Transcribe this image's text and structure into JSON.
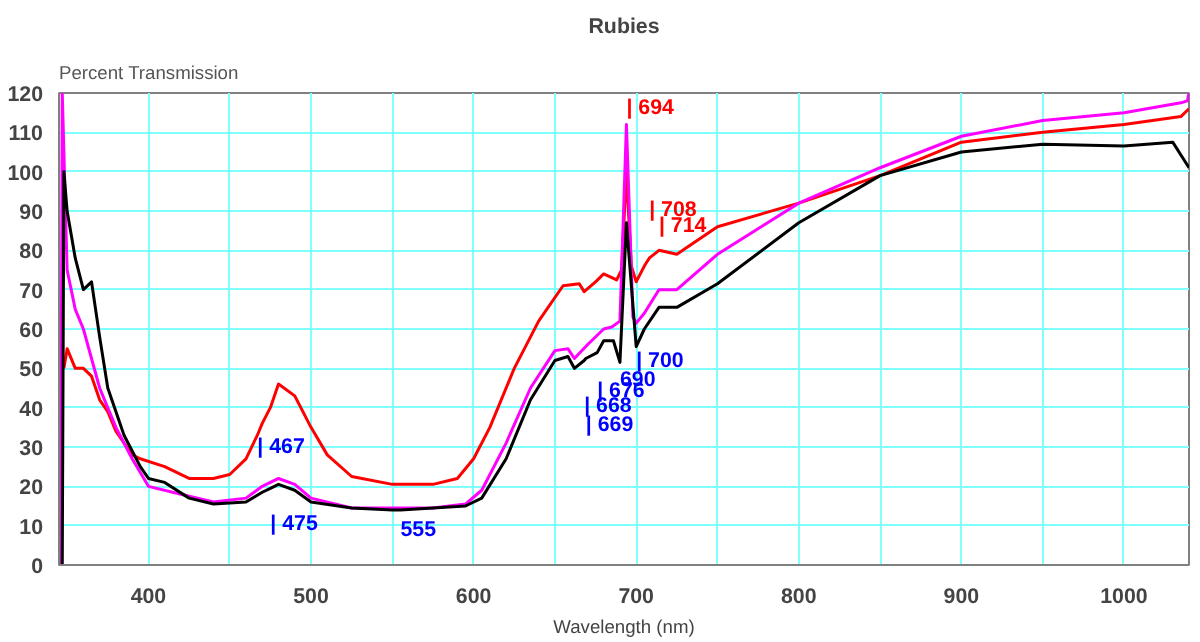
{
  "chart_data": {
    "type": "line",
    "title": "Rubies",
    "ylabel": "Percent Transmission",
    "xlabel": "Wavelength (nm)",
    "xlim": [
      345,
      1040
    ],
    "ylim": [
      0,
      120
    ],
    "xticks": [
      400,
      {
        "value": 450,
        "label": null
      },
      500,
      {
        "value": 550,
        "label": null
      },
      600,
      {
        "value": 650,
        "label": null
      },
      700,
      {
        "value": 750,
        "label": null
      },
      800,
      {
        "value": 850,
        "label": null
      },
      900,
      {
        "value": 950,
        "label": null
      },
      1000
    ],
    "yticks": [
      0,
      10,
      20,
      30,
      40,
      50,
      60,
      70,
      80,
      90,
      100,
      110,
      120
    ],
    "grid": true,
    "marker": "none",
    "line_style": "solid",
    "series": [
      {
        "color": "#ff0000",
        "x": [
          348,
          350,
          355,
          360,
          365,
          370,
          375,
          380,
          390,
          395,
          410,
          425,
          440,
          450,
          460,
          467,
          470,
          475,
          480,
          490,
          500,
          510,
          525,
          550,
          575,
          590,
          600,
          610,
          625,
          640,
          655,
          665,
          668,
          675,
          680,
          688,
          691,
          694,
          697,
          700,
          705,
          708,
          714,
          725,
          750,
          800,
          850,
          900,
          950,
          1000,
          1035,
          1040
        ],
        "values": [
          50,
          55,
          50,
          50,
          48,
          42,
          39,
          34,
          28,
          27,
          25,
          22,
          22,
          23,
          27,
          33,
          36,
          40,
          46,
          43,
          35,
          28,
          22.5,
          20.5,
          20.5,
          22,
          27,
          35,
          50,
          62,
          71,
          71.5,
          69.5,
          72,
          74,
          72.5,
          75,
          100,
          76,
          72,
          76,
          78,
          80,
          79,
          86,
          92,
          99,
          107.5,
          110,
          112,
          114,
          116
        ]
      },
      {
        "color": "#ff00ff",
        "x": [
          346,
          347,
          350,
          355,
          360,
          370,
          380,
          390,
          400,
          420,
          440,
          460,
          470,
          480,
          490,
          500,
          525,
          550,
          575,
          595,
          605,
          620,
          635,
          650,
          658,
          662,
          670,
          680,
          685,
          690,
          694,
          698,
          700,
          705,
          714,
          725,
          750,
          800,
          850,
          900,
          950,
          1000,
          1035,
          1039,
          1040
        ],
        "values": [
          0,
          120,
          75,
          65,
          60,
          45,
          35,
          27,
          20,
          18,
          16,
          17,
          20,
          22,
          20.5,
          17,
          14.5,
          14.5,
          14.5,
          15.5,
          19,
          31,
          45,
          54.5,
          55,
          52.5,
          56,
          60,
          60.5,
          62,
          112,
          63,
          61.5,
          64,
          70,
          70,
          79,
          92,
          101,
          109,
          113,
          115,
          117.5,
          118,
          120
        ]
      },
      {
        "color": "#000000",
        "x": [
          347,
          348,
          350,
          355,
          360,
          365,
          370,
          375,
          385,
          395,
          400,
          410,
          425,
          440,
          460,
          470,
          475,
          480,
          490,
          500,
          525,
          550,
          555,
          575,
          595,
          605,
          620,
          635,
          650,
          658,
          662,
          668,
          669,
          676,
          680,
          686,
          690,
          694,
          700,
          705,
          714,
          725,
          750,
          800,
          850,
          900,
          950,
          1000,
          1030,
          1040
        ],
        "values": [
          0,
          100,
          90,
          78,
          70,
          72,
          58,
          45,
          33,
          25,
          22,
          21,
          17,
          15.5,
          16,
          18.5,
          19.5,
          20.5,
          19,
          16,
          14.5,
          14,
          14,
          14.5,
          15,
          17,
          27,
          42,
          52,
          53,
          50,
          52,
          52.5,
          54,
          57,
          57,
          51.5,
          87,
          55.5,
          60,
          65.5,
          65.5,
          71.5,
          87,
          99,
          105,
          107,
          106.5,
          107.5,
          101
        ]
      }
    ],
    "annotations": [
      {
        "text": "| 694",
        "x": 694,
        "y": 112
      },
      {
        "text": "| 708",
        "x": 708,
        "y": 78
      },
      {
        "text": "| 714",
        "x": 714,
        "y": 80
      },
      {
        "text": "| 467",
        "x": 467,
        "y": 33
      },
      {
        "text": "| 475",
        "x": 475,
        "y": 19.5
      },
      {
        "text": "555",
        "x": 555,
        "y": 14
      },
      {
        "text": "| 669",
        "x": 669,
        "y": 52.5
      },
      {
        "text": "| 668",
        "x": 668,
        "y": 52
      },
      {
        "text": "| 676",
        "x": 676,
        "y": 54
      },
      {
        "text": "690",
        "x": 690,
        "y": 51.5
      },
      {
        "text": "| 700",
        "x": 700,
        "y": 55.5
      }
    ]
  }
}
